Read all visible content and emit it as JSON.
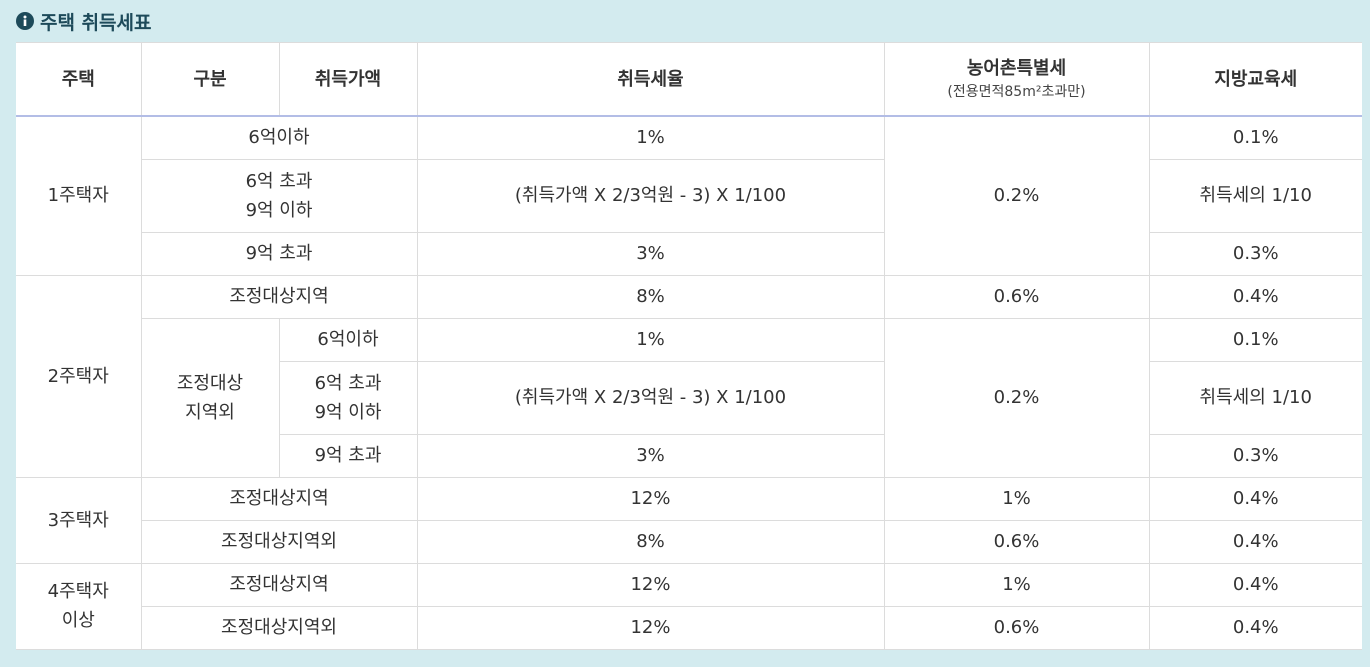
{
  "title": "주택 취득세표",
  "table": {
    "header": [
      "주택",
      "구분",
      "취득가액",
      "취득세율",
      "농어촌특별세",
      "지방교육세"
    ],
    "header_note": "(전용면적85m²초과만)",
    "rows": [
      [
        "1주택자",
        "6억이하",
        "1%",
        "0.2%",
        "0.1%"
      ],
      [
        "6억 초과\n9억 이하",
        "(취득가액 X 2/3억원 - 3) X 1/100",
        "취득세의 1/10"
      ],
      [
        "9억 초과",
        "3%",
        "0.3%"
      ],
      [
        "2주택자",
        "조정대상지역",
        "8%",
        "0.6%",
        "0.4%"
      ],
      [
        "조정대상\n지역외",
        "6억이하",
        "1%",
        "0.2%",
        "0.1%"
      ],
      [
        "6억 초과\n9억 이하",
        "(취득가액 X 2/3억원 - 3) X 1/100",
        "취득세의 1/10"
      ],
      [
        "9억 초과",
        "3%",
        "0.3%"
      ],
      [
        "3주택자",
        "조정대상지역",
        "12%",
        "1%",
        "0.4%"
      ],
      [
        "조정대상지역외",
        "8%",
        "0.6%",
        "0.4%"
      ],
      [
        "4주택자\n이상",
        "조정대상지역",
        "12%",
        "1%",
        "0.4%"
      ],
      [
        "조정대상지역외",
        "12%",
        "0.6%",
        "0.4%"
      ]
    ]
  }
}
